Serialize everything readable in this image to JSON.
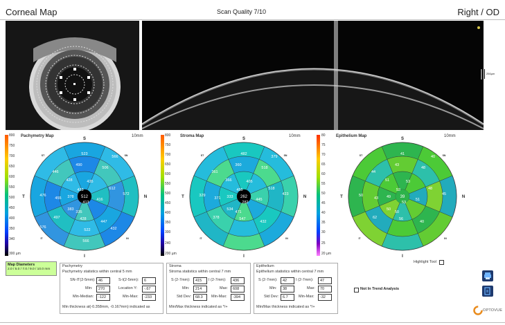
{
  "header": {
    "left_title": "Corneal Map",
    "center_title": "Scan Quality 7/10",
    "right_title": "Right / OD"
  },
  "oct": {
    "scale_label": "250µm"
  },
  "colors": {
    "header_line": "#bbbbbb",
    "legend_bg": "#ccff99"
  },
  "maps": [
    {
      "title": "Pachymetry Map",
      "size_label": "10mm",
      "scale_labels": [
        "800",
        "750",
        "700",
        "650",
        "600",
        "550",
        "500",
        "450",
        "400",
        "350",
        "340",
        "300 µm"
      ],
      "orient": {
        "top": "S",
        "bottom": "I",
        "left": "T",
        "right": "N",
        "tl": "ST",
        "tr": "SN",
        "bl": "IT",
        "br": "IN"
      },
      "center_value": "512",
      "values": [
        "523",
        "490",
        "506",
        "566",
        "446",
        "428",
        "435",
        "423",
        "612",
        "572",
        "476",
        "455",
        "378",
        "413",
        "416",
        "335",
        "383",
        "497",
        "428",
        "447",
        "576",
        "522",
        "432",
        "566"
      ]
    },
    {
      "title": "Stroma Map",
      "size_label": "10mm",
      "scale_labels": [
        "800",
        "750",
        "700",
        "650",
        "600",
        "550",
        "500",
        "450",
        "400",
        "350",
        "300",
        "240",
        "200 µm"
      ],
      "orient": {
        "top": "S",
        "bottom": "I",
        "left": "T",
        "right": "N",
        "tl": "ST",
        "tr": "SN",
        "bl": "IT",
        "br": "IN"
      },
      "center_value": "262",
      "values": [
        "482",
        "360",
        "518",
        "379",
        "361",
        "366",
        "405",
        "455",
        "518",
        "423",
        "329",
        "371",
        "333",
        "282",
        "445",
        "471",
        "534",
        "378",
        "547",
        "432"
      ]
    },
    {
      "title": "Epithelium Map",
      "size_label": "10mm",
      "scale_labels": [
        "80",
        "75",
        "70",
        "65",
        "60",
        "55",
        "50",
        "45",
        "40",
        "35",
        "30",
        "25",
        "20 µm"
      ],
      "orient": {
        "top": "S",
        "bottom": "I",
        "left": "T",
        "right": "N",
        "tl": "ST",
        "tr": "SN",
        "bl": "IT",
        "br": "IN"
      },
      "center_value": "39",
      "values": [
        "41",
        "43",
        "48",
        "40",
        "44",
        "51",
        "53",
        "53",
        "48",
        "45",
        "50",
        "43",
        "49",
        "53",
        "51",
        "50",
        "50",
        "62",
        "56",
        "40"
      ]
    }
  ],
  "legend": {
    "title": "Map Diameters",
    "value": "2.0 / 5.0 / 7.0 / 9.0 / 10.0 mm"
  },
  "pachymetry_panel": {
    "title": "Pachymetry",
    "subtitle": "Pachymetry statistics within central 5 mm",
    "rows": [
      {
        "l1": "SN-IT(2-5mm):",
        "v1": "46",
        "l2": "S-I(2-5mm):",
        "v2": "6"
      },
      {
        "l1": "Min:",
        "v1": "270",
        "l2": "Location Y:",
        "v2": "-.67"
      },
      {
        "l1": "Min-Median:",
        "v1": "-122",
        "l2": "Min-Max:",
        "v2": "-233"
      }
    ],
    "footer": "Min thickness at(-0.358mm, -0.167mm) indicated as"
  },
  "stroma_panel": {
    "title": "Stroma",
    "subtitle": "Stroma statistics within central 7 mm",
    "rows": [
      {
        "l1": "S (2-7mm):",
        "v1": "415",
        "l2": "I (2-7mm):",
        "v2": "436"
      },
      {
        "l1": "Min:",
        "v1": "214",
        "l2": "Max:",
        "v2": "608"
      },
      {
        "l1": "Std Dev:",
        "v1": "68.3",
        "l2": "Min-Max:",
        "v2": "-394"
      }
    ],
    "footer": "Min/Max thickness indicated as */+"
  },
  "epithelium_panel": {
    "title": "Epithelium",
    "subtitle": "Epithelium statistics within central 7 mm",
    "rows": [
      {
        "l1": "S (2-7mm):",
        "v1": "42",
        "l2": "I (2-7mm):",
        "v2": "47"
      },
      {
        "l1": "Min:",
        "v1": "38",
        "l2": "Max:",
        "v2": "70"
      },
      {
        "l1": "Std Dev:",
        "v1": "6.7",
        "l2": "Min-Max:",
        "v2": "-32"
      }
    ],
    "footer": "Min/Max thickness indicated as */+"
  },
  "highlight_tool": "Highlight Tool",
  "not_in_trend": "Not In Trend Analysis",
  "brand": "OPTOVUE",
  "icons": [
    "print-icon",
    "report-icon"
  ]
}
